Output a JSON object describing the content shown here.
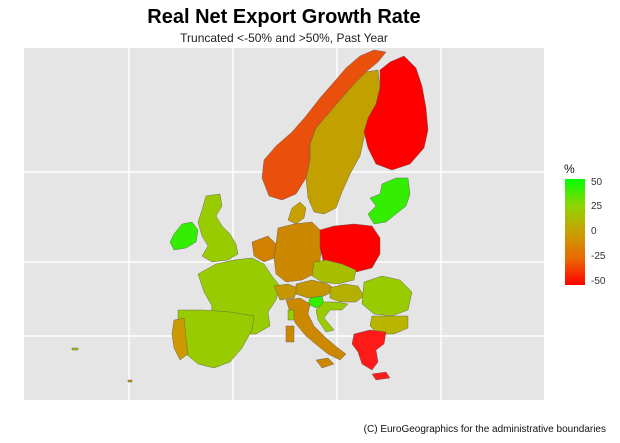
{
  "header": {
    "title": "Real Net Export Growth Rate",
    "subtitle": "Truncated <-50% and >50%, Past Year"
  },
  "legend": {
    "title": "%",
    "ticks": [
      "50",
      "25",
      "0",
      "-25",
      "-50"
    ],
    "color_low": "#ff0000",
    "color_mid": "#c8a000",
    "color_high": "#00ff00"
  },
  "credit": "(C) EuroGeographics for the administrative boundaries",
  "map_data": {
    "type": "choropleth",
    "scale_min": -50,
    "scale_max": 50,
    "grid": true,
    "panel_background": "#e5e5e5",
    "regions": [
      {
        "id": "finland",
        "color": "#ff0000"
      },
      {
        "id": "poland",
        "color": "#ff0000"
      },
      {
        "id": "greece",
        "color": "#ff1a1a"
      },
      {
        "id": "norway",
        "color": "#e8500c"
      },
      {
        "id": "sweden",
        "color": "#c2a000"
      },
      {
        "id": "baltics",
        "color": "#33ee00"
      },
      {
        "id": "ireland",
        "color": "#33ee00"
      },
      {
        "id": "uk",
        "color": "#99cc00"
      },
      {
        "id": "france",
        "color": "#99cc00"
      },
      {
        "id": "spain",
        "color": "#99cc00"
      },
      {
        "id": "portugal",
        "color": "#cc9900"
      },
      {
        "id": "germany",
        "color": "#cc8800"
      },
      {
        "id": "benelux",
        "color": "#d28000"
      },
      {
        "id": "denmark",
        "color": "#c8a000"
      },
      {
        "id": "czechia",
        "color": "#a8be00"
      },
      {
        "id": "austria",
        "color": "#c49600"
      },
      {
        "id": "switzerland",
        "color": "#c49600"
      },
      {
        "id": "hungary",
        "color": "#b4b000"
      },
      {
        "id": "slovenia",
        "color": "#33ee00"
      },
      {
        "id": "croatia",
        "color": "#99cc00"
      },
      {
        "id": "italy",
        "color": "#cc8800"
      },
      {
        "id": "romania",
        "color": "#99cc00"
      },
      {
        "id": "bulgaria",
        "color": "#b8b400"
      },
      {
        "id": "sardinia",
        "color": "#cc8800"
      },
      {
        "id": "sicily",
        "color": "#cc8800"
      },
      {
        "id": "corsica",
        "color": "#99cc00"
      }
    ]
  }
}
